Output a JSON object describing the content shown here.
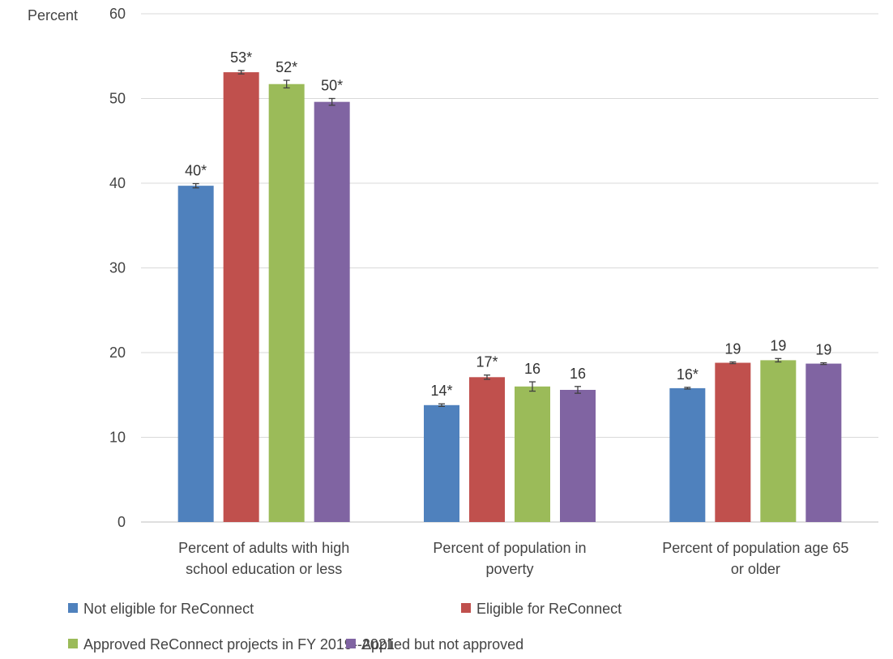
{
  "chart_data": {
    "type": "bar",
    "ylabel": "Percent",
    "ylim": [
      0,
      60
    ],
    "yticks": [
      0,
      10,
      20,
      30,
      40,
      50,
      60
    ],
    "grid": true,
    "legend_position": "bottom",
    "categories": [
      [
        "Percent of adults with high",
        "school education or less"
      ],
      [
        "Percent of population in",
        "poverty"
      ],
      [
        "Percent of population age 65",
        "or older"
      ]
    ],
    "series": [
      {
        "name": "Not eligible for ReConnect",
        "color": "#4F81BD",
        "values": [
          39.7,
          13.8,
          15.8
        ],
        "errors": [
          0.25,
          0.15,
          0.1
        ],
        "labels": [
          "40*",
          "14*",
          "16*"
        ]
      },
      {
        "name": "Eligible for ReConnect",
        "color": "#C0504D",
        "values": [
          53.1,
          17.1,
          18.8
        ],
        "errors": [
          0.2,
          0.25,
          0.1
        ],
        "labels": [
          "53*",
          "17*",
          "19"
        ]
      },
      {
        "name": "Approved ReConnect projects in FY 2019--2021",
        "color": "#9BBB59",
        "values": [
          51.7,
          16.0,
          19.1
        ],
        "errors": [
          0.45,
          0.55,
          0.2
        ],
        "labels": [
          "52*",
          "16",
          "19"
        ]
      },
      {
        "name": "Applied but not approved",
        "color": "#8064A2",
        "values": [
          49.6,
          15.6,
          18.7
        ],
        "errors": [
          0.4,
          0.4,
          0.1
        ],
        "labels": [
          "50*",
          "16",
          "19"
        ]
      }
    ]
  }
}
